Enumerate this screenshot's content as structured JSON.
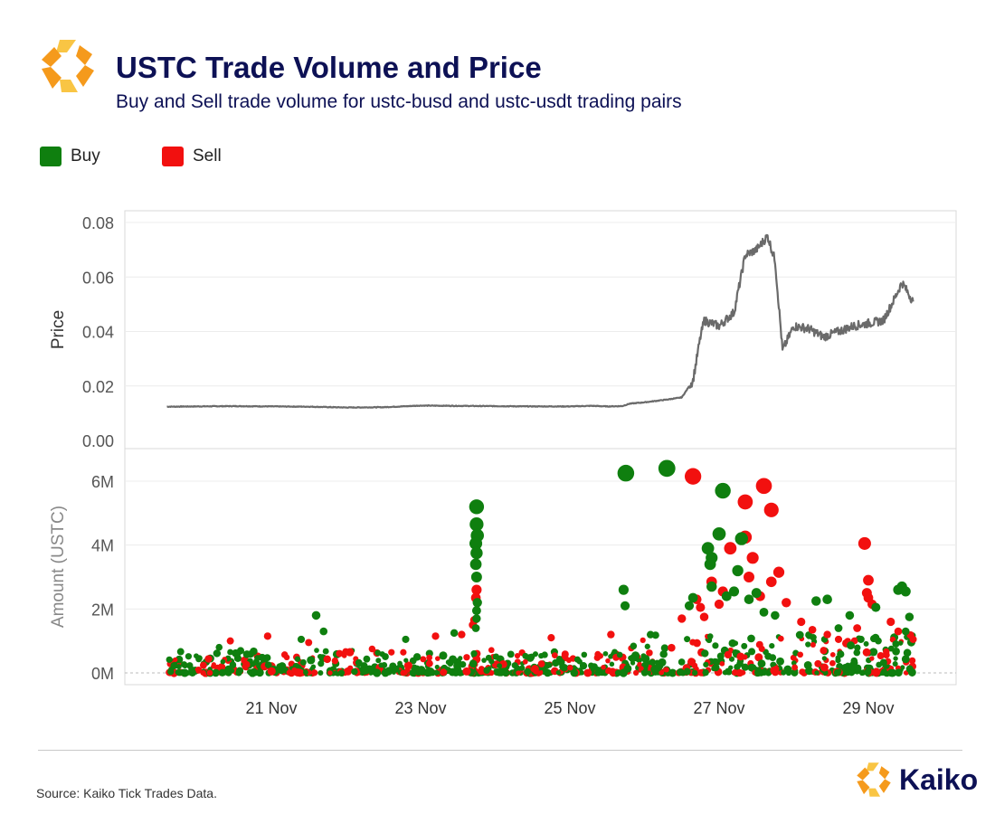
{
  "header": {
    "title": "USTC Trade Volume and Price",
    "subtitle": "Buy and Sell trade volume for ustc-busd and ustc-usdt trading pairs"
  },
  "legend": {
    "buy": {
      "label": "Buy",
      "color": "#0f7f0f"
    },
    "sell": {
      "label": "Sell",
      "color": "#f2100f"
    }
  },
  "footer": {
    "source": "Source: Kaiko Tick Trades Data.",
    "brand": "Kaiko",
    "brand_icon": "kaiko-logo-icon",
    "brand_colors": [
      "#f59a1c",
      "#f9c544",
      "#0d1155"
    ]
  },
  "chart_data": [
    {
      "type": "line",
      "ylabel": "Price",
      "ylim": [
        0,
        0.08
      ],
      "yticks": [
        "0.00",
        "0.02",
        "0.04",
        "0.06",
        "0.08"
      ],
      "x_dates": [
        "21 Nov",
        "23 Nov",
        "25 Nov",
        "27 Nov",
        "29 Nov"
      ],
      "xlim_days": [
        19.35,
        29.75
      ],
      "grid": true,
      "color": "#6a6a6a",
      "series": [
        {
          "x": [
            19.6,
            20.0,
            20.5,
            21.0,
            21.5,
            22.0,
            22.5,
            23.0,
            23.5,
            24.0,
            24.5,
            25.0,
            25.3,
            25.5,
            25.7,
            25.8,
            26.0,
            26.3,
            26.5,
            26.65,
            26.75,
            26.8,
            27.0,
            27.2,
            27.35,
            27.5,
            27.65,
            27.75,
            27.85,
            28.0,
            28.2,
            28.4,
            28.6,
            28.8,
            29.0,
            29.2,
            29.35,
            29.45,
            29.6
          ],
          "y": [
            0.0124,
            0.0125,
            0.0126,
            0.0125,
            0.0124,
            0.0121,
            0.0122,
            0.0128,
            0.0127,
            0.0126,
            0.0125,
            0.0125,
            0.0127,
            0.0125,
            0.0126,
            0.0135,
            0.014,
            0.015,
            0.0158,
            0.022,
            0.038,
            0.044,
            0.042,
            0.047,
            0.068,
            0.07,
            0.075,
            0.066,
            0.033,
            0.042,
            0.041,
            0.038,
            0.04,
            0.042,
            0.043,
            0.044,
            0.052,
            0.058,
            0.051
          ]
        }
      ]
    },
    {
      "type": "scatter",
      "ylabel": "Amount (USTC)",
      "ylim": [
        0,
        6.8
      ],
      "yticks": [
        "0M",
        "2M",
        "4M",
        "6M"
      ],
      "x_dates": [
        "21 Nov",
        "23 Nov",
        "25 Nov",
        "27 Nov",
        "29 Nov"
      ],
      "xlim_days": [
        19.35,
        29.75
      ],
      "grid": true,
      "series": [
        {
          "name": "Buy",
          "color": "#0f7f0f",
          "points": [
            [
              25.75,
              6.25
            ],
            [
              26.3,
              6.4
            ],
            [
              27.05,
              5.7
            ],
            [
              27.0,
              4.35
            ],
            [
              27.3,
              4.2
            ],
            [
              26.85,
              3.9
            ],
            [
              26.9,
              3.6
            ],
            [
              27.25,
              3.2
            ],
            [
              26.88,
              3.4
            ],
            [
              23.75,
              5.2
            ],
            [
              23.75,
              4.65
            ],
            [
              23.76,
              4.3
            ],
            [
              23.74,
              4.05
            ],
            [
              23.75,
              3.75
            ],
            [
              23.74,
              3.4
            ],
            [
              23.75,
              3.0
            ],
            [
              23.76,
              2.2
            ],
            [
              23.75,
              1.95
            ],
            [
              23.75,
              1.7
            ],
            [
              23.74,
              1.4
            ],
            [
              21.6,
              1.8
            ],
            [
              21.7,
              1.3
            ],
            [
              23.45,
              1.25
            ],
            [
              22.8,
              1.05
            ],
            [
              21.4,
              1.05
            ],
            [
              20.3,
              0.8
            ],
            [
              25.72,
              2.6
            ],
            [
              25.74,
              2.1
            ],
            [
              26.6,
              2.1
            ],
            [
              26.65,
              2.35
            ],
            [
              27.4,
              2.3
            ],
            [
              27.6,
              1.9
            ],
            [
              27.75,
              1.8
            ],
            [
              28.3,
              2.25
            ],
            [
              28.45,
              2.3
            ],
            [
              28.75,
              1.8
            ],
            [
              29.1,
              2.05
            ],
            [
              29.4,
              2.6
            ],
            [
              29.45,
              2.7
            ],
            [
              29.5,
              2.55
            ],
            [
              29.55,
              1.75
            ],
            [
              29.5,
              1.3
            ],
            [
              28.9,
              1.05
            ],
            [
              28.6,
              1.4
            ],
            [
              27.5,
              2.5
            ],
            [
              26.9,
              2.7
            ],
            [
              27.1,
              2.4
            ],
            [
              27.2,
              2.55
            ]
          ]
        },
        {
          "name": "Sell",
          "color": "#f2100f",
          "points": [
            [
              26.65,
              6.15
            ],
            [
              27.6,
              5.85
            ],
            [
              27.35,
              5.35
            ],
            [
              27.7,
              5.1
            ],
            [
              27.35,
              4.25
            ],
            [
              27.45,
              3.6
            ],
            [
              27.15,
              3.9
            ],
            [
              27.8,
              3.15
            ],
            [
              28.95,
              4.05
            ],
            [
              29.0,
              2.9
            ],
            [
              28.98,
              2.5
            ],
            [
              29.05,
              2.15
            ],
            [
              29.0,
              2.35
            ],
            [
              23.75,
              2.6
            ],
            [
              23.74,
              2.35
            ],
            [
              23.72,
              1.65
            ],
            [
              23.7,
              1.5
            ],
            [
              20.45,
              1.0
            ],
            [
              20.95,
              1.15
            ],
            [
              21.5,
              0.95
            ],
            [
              22.35,
              0.75
            ],
            [
              23.2,
              1.15
            ],
            [
              23.55,
              1.2
            ],
            [
              24.75,
              1.1
            ],
            [
              25.55,
              1.2
            ],
            [
              26.7,
              2.3
            ],
            [
              26.75,
              2.05
            ],
            [
              26.8,
              1.75
            ],
            [
              27.0,
              2.15
            ],
            [
              27.4,
              3.0
            ],
            [
              27.7,
              2.85
            ],
            [
              27.9,
              2.2
            ],
            [
              28.1,
              1.6
            ],
            [
              28.25,
              1.35
            ],
            [
              28.45,
              1.2
            ],
            [
              28.6,
              1.05
            ],
            [
              28.85,
              1.4
            ],
            [
              29.3,
              1.6
            ],
            [
              29.4,
              1.3
            ],
            [
              29.6,
              1.05
            ],
            [
              26.5,
              1.7
            ],
            [
              26.9,
              2.85
            ],
            [
              27.05,
              2.55
            ],
            [
              27.55,
              2.4
            ]
          ]
        }
      ]
    }
  ]
}
